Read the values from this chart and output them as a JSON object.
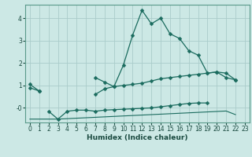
{
  "xlabel": "Humidex (Indice chaleur)",
  "x": [
    0,
    1,
    2,
    3,
    4,
    5,
    6,
    7,
    8,
    9,
    10,
    11,
    12,
    13,
    14,
    15,
    16,
    17,
    18,
    19,
    20,
    21,
    22,
    23
  ],
  "line1": [
    1.05,
    0.75,
    null,
    null,
    null,
    null,
    null,
    1.35,
    1.15,
    0.95,
    1.9,
    3.25,
    4.35,
    3.75,
    4.0,
    3.3,
    3.1,
    2.55,
    2.35,
    1.55,
    1.6,
    1.35,
    1.25,
    null
  ],
  "line2": [
    0.9,
    0.75,
    null,
    null,
    null,
    null,
    null,
    0.6,
    0.85,
    0.95,
    1.0,
    1.05,
    1.1,
    1.2,
    1.3,
    1.35,
    1.4,
    1.45,
    1.5,
    1.55,
    1.6,
    1.55,
    1.25,
    null
  ],
  "line3": [
    null,
    null,
    -0.15,
    -0.5,
    -0.15,
    -0.1,
    -0.1,
    -0.15,
    -0.1,
    -0.08,
    -0.06,
    -0.04,
    -0.02,
    0.0,
    0.05,
    0.1,
    0.15,
    0.2,
    0.22,
    0.22,
    null,
    null,
    null,
    null
  ],
  "line4": [
    -0.5,
    -0.5,
    -0.5,
    -0.5,
    -0.48,
    -0.46,
    -0.44,
    -0.42,
    -0.4,
    -0.38,
    -0.36,
    -0.34,
    -0.32,
    -0.3,
    -0.28,
    -0.26,
    -0.24,
    -0.22,
    -0.2,
    -0.18,
    -0.16,
    -0.14,
    -0.3,
    null
  ],
  "bg_color": "#cce8e5",
  "grid_color": "#aaccca",
  "line_color": "#1a6b5e",
  "ylim": [
    -0.65,
    4.6
  ],
  "xlim": [
    -0.5,
    23.5
  ],
  "yticks": [
    0,
    1,
    2,
    3,
    4
  ],
  "ytick_labels": [
    "-0",
    "1",
    "2",
    "3",
    "4"
  ],
  "xticks": [
    0,
    1,
    2,
    3,
    4,
    5,
    6,
    7,
    8,
    9,
    10,
    11,
    12,
    13,
    14,
    15,
    16,
    17,
    18,
    19,
    20,
    21,
    22,
    23
  ],
  "xlabel_fontsize": 6.5,
  "tick_fontsize": 5.5
}
